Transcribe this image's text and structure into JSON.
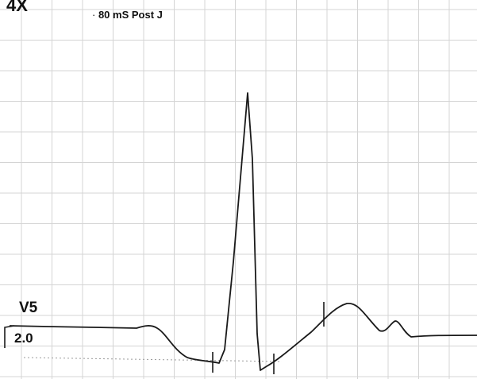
{
  "magnification": "4X",
  "measurement_point": "80 mS Post J",
  "lead": "V5",
  "scale": "2.0",
  "colors": {
    "background": "#ffffff",
    "grid": "#d4d4d4",
    "trace": "#1a1a1a",
    "text": "#111111"
  }
}
